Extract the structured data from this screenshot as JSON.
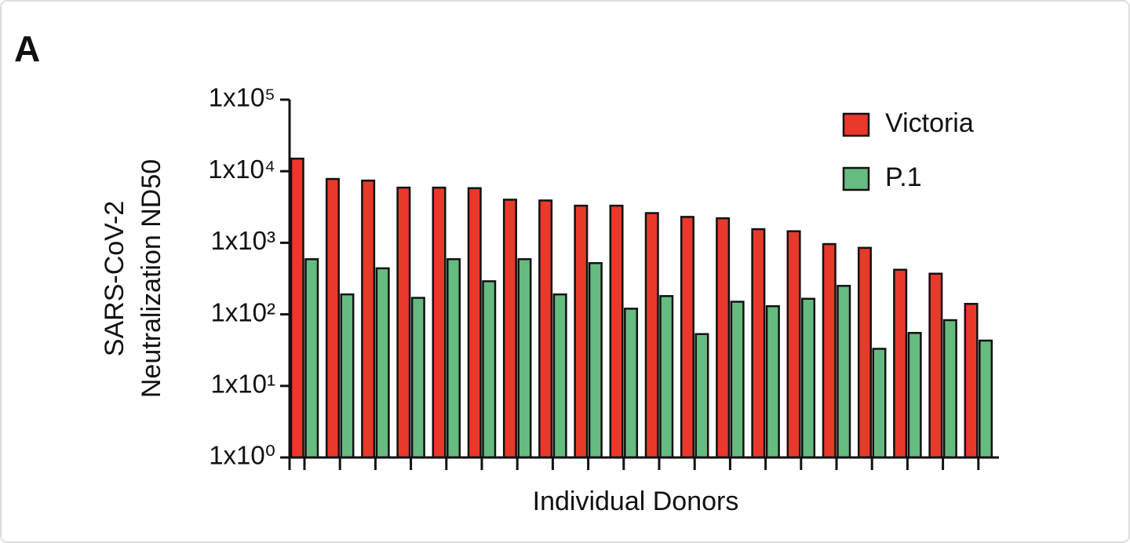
{
  "chart_data": {
    "type": "bar",
    "panel_label": "A",
    "y_label": [
      "SARS-CoV-2",
      "Neutralization ND50"
    ],
    "x_label": "Individual Donors",
    "log_scale": true,
    "legend": "top-right",
    "categories": [
      null,
      null,
      null,
      null,
      null,
      null,
      null,
      null,
      null,
      null,
      null,
      null,
      null,
      null,
      null,
      null,
      null,
      null,
      null,
      null
    ],
    "series": [
      {
        "name": "Victoria",
        "color": "#e8392b",
        "values": [
          15000,
          7800,
          7400,
          5900,
          5900,
          5800,
          4000,
          3900,
          3300,
          3300,
          2600,
          2300,
          2200,
          1550,
          1450,
          960,
          850,
          420,
          370,
          140
        ]
      },
      {
        "name": "P.1",
        "color": "#66bb80",
        "values": [
          590,
          190,
          440,
          170,
          590,
          290,
          590,
          190,
          520,
          120,
          180,
          53,
          150,
          130,
          165,
          250,
          33,
          55,
          83,
          43
        ]
      }
    ],
    "ylim": [
      1,
      100000
    ],
    "yticks": [
      {
        "value": 1,
        "label": "1x10⁰"
      },
      {
        "value": 10,
        "label": "1x10¹"
      },
      {
        "value": 100,
        "label": "1x10²"
      },
      {
        "value": 1000,
        "label": "1x10³"
      },
      {
        "value": 10000,
        "label": "1x10⁴"
      },
      {
        "value": 100000,
        "label": "1x10⁵"
      }
    ]
  }
}
